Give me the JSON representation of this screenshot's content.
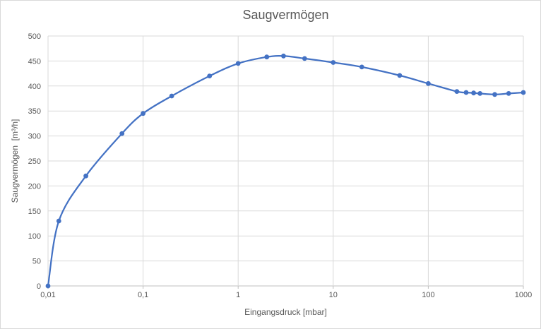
{
  "chart": {
    "title": "Saugvermögen",
    "x_axis": {
      "label": "Eingangsdruck [mbar]",
      "scale": "log",
      "ticks": [
        0.01,
        0.1,
        1,
        10,
        100,
        1000
      ],
      "tick_labels": [
        "0,01",
        "0,1",
        "1",
        "10",
        "100",
        "1000"
      ]
    },
    "y_axis": {
      "label": "Saugvermögen  [m³/h]",
      "min": 0,
      "max": 500,
      "step": 50
    },
    "colors": {
      "series": "#4472C4",
      "gridline": "#D9D9D9",
      "axis_line": "#BFBFBF",
      "text": "#595959",
      "background": "#FFFFFF",
      "border": "#D9D9D9"
    }
  },
  "chart_data": {
    "type": "line",
    "title": "Saugvermögen",
    "xlabel": "Eingangsdruck [mbar]",
    "ylabel": "Saugvermögen [m³/h]",
    "x_scale": "log",
    "xlim": [
      0.01,
      1000
    ],
    "ylim": [
      0,
      500
    ],
    "grid": true,
    "legend": false,
    "marker": "circle",
    "smooth": true,
    "series": [
      {
        "name": "Saugvermögen",
        "x": [
          0.01,
          0.013,
          0.025,
          0.06,
          0.1,
          0.2,
          0.5,
          1,
          2,
          3,
          5,
          10,
          20,
          50,
          100,
          200,
          250,
          300,
          350,
          500,
          700,
          1000
        ],
        "y": [
          0,
          130,
          220,
          305,
          345,
          380,
          420,
          445,
          458,
          460,
          455,
          447,
          438,
          421,
          405,
          389,
          387,
          386,
          385,
          383,
          385,
          387
        ]
      }
    ]
  }
}
